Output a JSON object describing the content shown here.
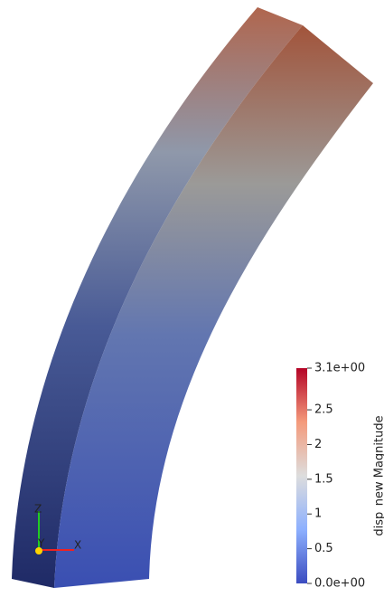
{
  "colorbar": {
    "title": "disp_new Magnitude",
    "range": [
      0,
      3.1
    ],
    "ticks": [
      {
        "value": 3.1,
        "label": "3.1e+00"
      },
      2.5,
      2,
      1.5,
      1,
      0.5,
      {
        "value": 0,
        "label": "0.0e+00"
      }
    ]
  },
  "axes": {
    "x": "X",
    "y": "Y",
    "z": "Z"
  }
}
